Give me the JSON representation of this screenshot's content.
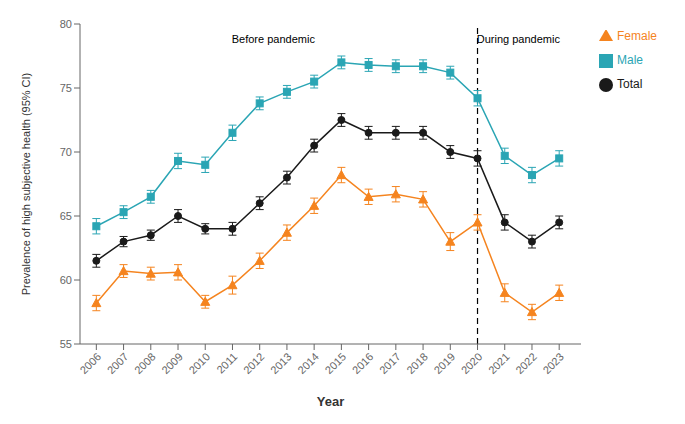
{
  "chart_data": {
    "type": "line",
    "xlabel": "Year",
    "ylabel": "Prevalence of high subjective health (95% CI)",
    "x": [
      2006,
      2007,
      2008,
      2009,
      2010,
      2011,
      2012,
      2013,
      2014,
      2015,
      2016,
      2017,
      2018,
      2019,
      2020,
      2021,
      2022,
      2023
    ],
    "xlim": [
      2005.4,
      2023.8
    ],
    "xticks": [
      2006,
      2007,
      2008,
      2009,
      2010,
      2011,
      2012,
      2013,
      2014,
      2015,
      2016,
      2017,
      2018,
      2019,
      2020,
      2021,
      2022,
      2023
    ],
    "ylim": [
      55,
      80
    ],
    "yticks": [
      55,
      60,
      65,
      70,
      75,
      80
    ],
    "grid": false,
    "legend": "right",
    "series": [
      {
        "name": "Total",
        "color": "#1a1a1a",
        "marker": "circle",
        "values": [
          61.5,
          63.0,
          63.5,
          65.0,
          64.0,
          64.0,
          66.0,
          68.0,
          70.5,
          72.5,
          71.5,
          71.5,
          71.5,
          70.0,
          69.5,
          64.5,
          63.0,
          64.5
        ],
        "errors": [
          0.5,
          0.4,
          0.4,
          0.5,
          0.4,
          0.5,
          0.5,
          0.5,
          0.5,
          0.5,
          0.5,
          0.5,
          0.5,
          0.5,
          0.6,
          0.6,
          0.5,
          0.5
        ]
      },
      {
        "name": "Male",
        "color": "#2aa5b4",
        "marker": "square",
        "values": [
          64.2,
          65.3,
          66.5,
          69.3,
          69.0,
          71.5,
          73.8,
          74.7,
          75.5,
          77.0,
          76.8,
          76.7,
          76.7,
          76.2,
          74.2,
          69.7,
          68.2,
          69.5
        ],
        "errors": [
          0.6,
          0.5,
          0.5,
          0.6,
          0.6,
          0.6,
          0.5,
          0.5,
          0.5,
          0.5,
          0.5,
          0.5,
          0.5,
          0.5,
          0.6,
          0.6,
          0.6,
          0.6
        ]
      },
      {
        "name": "Female",
        "color": "#f5841f",
        "marker": "triangle",
        "values": [
          58.2,
          60.7,
          60.5,
          60.6,
          58.3,
          59.6,
          61.5,
          63.7,
          65.8,
          68.2,
          66.5,
          66.7,
          66.3,
          63.0,
          64.5,
          59.0,
          57.5,
          59.0
        ],
        "errors": [
          0.6,
          0.5,
          0.5,
          0.6,
          0.5,
          0.7,
          0.6,
          0.6,
          0.6,
          0.6,
          0.6,
          0.6,
          0.6,
          0.7,
          0.6,
          0.7,
          0.6,
          0.6
        ]
      }
    ],
    "reference_lines": [
      {
        "x": 2020.0,
        "color": "#000000",
        "line_style": "dashed"
      }
    ],
    "annotations": [
      {
        "text": "Before pandemic",
        "x": 2012.5,
        "y": 79.3
      },
      {
        "text": "During pandemic",
        "x": 2021.5,
        "y": 79.3
      }
    ]
  }
}
